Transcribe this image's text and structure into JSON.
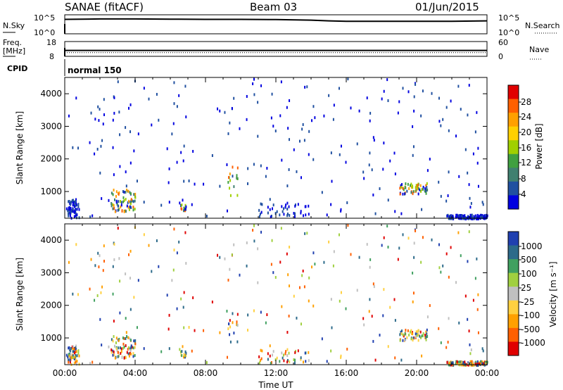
{
  "header": {
    "station": "SANAE (fitACF)",
    "beam": "Beam 03",
    "date": "01/Jun/2015"
  },
  "noise_panel": {
    "left_label": "N.Sky",
    "left_ticks": [
      "10^5",
      "10^0"
    ],
    "right_label": "N.Search",
    "right_ticks": [
      "10^5",
      "10^0"
    ]
  },
  "freq_panel": {
    "left_label_line1": "Freq.",
    "left_label_line2": "[MHz]",
    "left_ticks": [
      "18",
      "8"
    ],
    "right_label": "Nave",
    "right_ticks": [
      "60",
      "0"
    ]
  },
  "cpid": {
    "label": "CPID",
    "mode": "normal 150"
  },
  "x_axis": {
    "label": "Time UT",
    "ticks": [
      "00:00",
      "04:00",
      "08:00",
      "12:00",
      "16:00",
      "20:00",
      "00:00"
    ]
  },
  "power_colorbar": {
    "label": "Power [dB]",
    "ticks": [
      "28",
      "24",
      "20",
      "16",
      "12",
      "8",
      "4"
    ],
    "colors": [
      "#e00000",
      "#ff6000",
      "#ffa000",
      "#ffd000",
      "#a0d000",
      "#40a040",
      "#408070",
      "#2050a0",
      "#0000e0"
    ]
  },
  "velocity_colorbar": {
    "label": "Velocity [m s⁻¹]",
    "ticks": [
      "1000",
      "500",
      "100",
      "25",
      "-25",
      "-100",
      "-500",
      "-1000"
    ],
    "colors": [
      "#2040b0",
      "#2c6a8a",
      "#40a060",
      "#a0d040",
      "#c0c0c0",
      "#ffd040",
      "#ffa000",
      "#ff6000",
      "#e00000"
    ]
  },
  "chart_data": [
    {
      "type": "line",
      "name": "noise",
      "x_range_hours": [
        0,
        24
      ],
      "ylim_log10": [
        0,
        5
      ],
      "series": [
        {
          "name": "N.Sky",
          "x": [
            0,
            2,
            4,
            6,
            8,
            10,
            12,
            14,
            15,
            16,
            18,
            20,
            22,
            24
          ],
          "values_log10": [
            3.8,
            3.9,
            3.9,
            3.85,
            3.8,
            3.8,
            3.75,
            3.6,
            3.4,
            3.3,
            3.3,
            3.3,
            3.3,
            3.4
          ]
        },
        {
          "name": "N.Search",
          "x": [
            0,
            24
          ],
          "values_log10": [
            0.3,
            0.3
          ]
        }
      ]
    },
    {
      "type": "line",
      "name": "frequency",
      "x_range_hours": [
        0,
        24
      ],
      "ylim_left": [
        8,
        18
      ],
      "ylim_right": [
        0,
        60
      ],
      "series": [
        {
          "name": "Freq.",
          "x": [
            0,
            24
          ],
          "values": [
            12,
            12
          ]
        },
        {
          "name": "Nave",
          "x": [
            0,
            24
          ],
          "values": [
            15,
            15
          ]
        }
      ]
    },
    {
      "type": "heatmap",
      "name": "power",
      "title": "Power [dB]",
      "xlabel": "",
      "ylabel": "Slant Range [km]",
      "xlim_hours": [
        0,
        24
      ],
      "ylim_km": [
        180,
        4500
      ],
      "yticks": [
        1000,
        2000,
        3000,
        4000
      ],
      "clim": [
        0,
        30
      ]
    },
    {
      "type": "heatmap",
      "name": "velocity",
      "title": "Velocity [m s⁻¹]",
      "xlabel": "Time UT",
      "ylabel": "Slant Range [km]",
      "xlim_hours": [
        0,
        24
      ],
      "ylim_km": [
        180,
        4500
      ],
      "yticks": [
        1000,
        2000,
        3000,
        4000
      ],
      "clim": [
        -1000,
        1000
      ]
    }
  ]
}
